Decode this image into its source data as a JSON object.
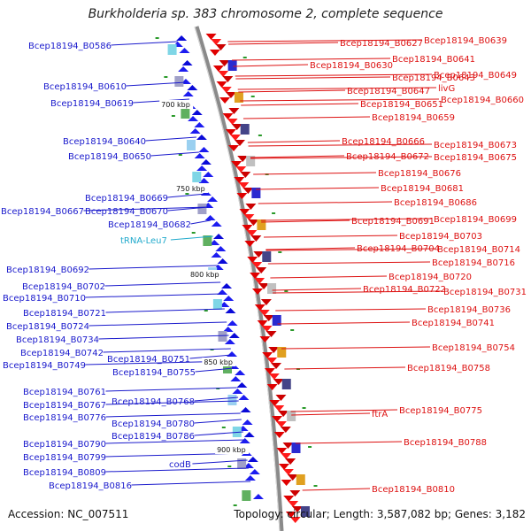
{
  "title": "Burkholderia sp. 383 chromosome 2, complete sequence",
  "accession_text": "Accession: NC_007511",
  "summary_text": "Topology: circular; Length: 3,587,082 bp; Genes: 3,182",
  "colors": {
    "left_labels": "#1a1acc",
    "right_labels": "#dd1111",
    "trna_label": "#22aacc",
    "backbone": "#8a8a8a"
  },
  "scale_ticks": [
    "700 kbp",
    "750 kbp",
    "800 kbp",
    "850 kbp",
    "900 kbp"
  ],
  "left_labels": [
    {
      "text": "Bcep18194_B0586"
    },
    {
      "text": "Bcep18194_B0610"
    },
    {
      "text": "Bcep18194_B0619"
    },
    {
      "text": "Bcep18194_B0640"
    },
    {
      "text": "Bcep18194_B0650"
    },
    {
      "text": "Bcep18194_B0669"
    },
    {
      "text": "Bcep18194_B0667"
    },
    {
      "text": "Bcep18194_B0670"
    },
    {
      "text": "Bcep18194_B0682"
    },
    {
      "text": "tRNA-Leu7"
    },
    {
      "text": "Bcep18194_B0692"
    },
    {
      "text": "Bcep18194_B0702"
    },
    {
      "text": "Bcep18194_B0710"
    },
    {
      "text": "Bcep18194_B0721"
    },
    {
      "text": "Bcep18194_B0724"
    },
    {
      "text": "Bcep18194_B0734"
    },
    {
      "text": "Bcep18194_B0742"
    },
    {
      "text": "Bcep18194_B0749"
    },
    {
      "text": "Bcep18194_B0751"
    },
    {
      "text": "Bcep18194_B0755"
    },
    {
      "text": "Bcep18194_B0761"
    },
    {
      "text": "Bcep18194_B0767"
    },
    {
      "text": "Bcep18194_B0768"
    },
    {
      "text": "Bcep18194_B0776"
    },
    {
      "text": "Bcep18194_B0780"
    },
    {
      "text": "Bcep18194_B0786"
    },
    {
      "text": "Bcep18194_B0790"
    },
    {
      "text": "Bcep18194_B0799"
    },
    {
      "text": "codB"
    },
    {
      "text": "Bcep18194_B0809"
    },
    {
      "text": "Bcep18194_B0816"
    }
  ],
  "right_labels": [
    {
      "text": "Bcep18194_B0627"
    },
    {
      "text": "Bcep18194_B0639"
    },
    {
      "text": "Bcep18194_B0641"
    },
    {
      "text": "Bcep18194_B0630"
    },
    {
      "text": "Bcep18194_B0643"
    },
    {
      "text": "Bcep18194_B0649"
    },
    {
      "text": "livG"
    },
    {
      "text": "Bcep18194_B0647"
    },
    {
      "text": "Bcep18194_B0660"
    },
    {
      "text": "Bcep18194_B0651"
    },
    {
      "text": "Bcep18194_B0659"
    },
    {
      "text": "Bcep18194_B0666"
    },
    {
      "text": "Bcep18194_B0673"
    },
    {
      "text": "Bcep18194_B0672"
    },
    {
      "text": "Bcep18194_B0675"
    },
    {
      "text": "Bcep18194_B0676"
    },
    {
      "text": "Bcep18194_B0681"
    },
    {
      "text": "Bcep18194_B0686"
    },
    {
      "text": "Bcep18194_B0691"
    },
    {
      "text": "Bcep18194_B0699"
    },
    {
      "text": "Bcep18194_B0703"
    },
    {
      "text": "Bcep18194_B0704"
    },
    {
      "text": "Bcep18194_B0714"
    },
    {
      "text": "Bcep18194_B0716"
    },
    {
      "text": "Bcep18194_B0720"
    },
    {
      "text": "Bcep18194_B0722"
    },
    {
      "text": "Bcep18194_B0731"
    },
    {
      "text": "Bcep18194_B0736"
    },
    {
      "text": "Bcep18194_B0741"
    },
    {
      "text": "Bcep18194_B0754"
    },
    {
      "text": "Bcep18194_B0758"
    },
    {
      "text": "Bcep18194_B0775"
    },
    {
      "text": "ftrA"
    },
    {
      "text": "Bcep18194_B0788"
    },
    {
      "text": "Bcep18194_B0810"
    }
  ]
}
